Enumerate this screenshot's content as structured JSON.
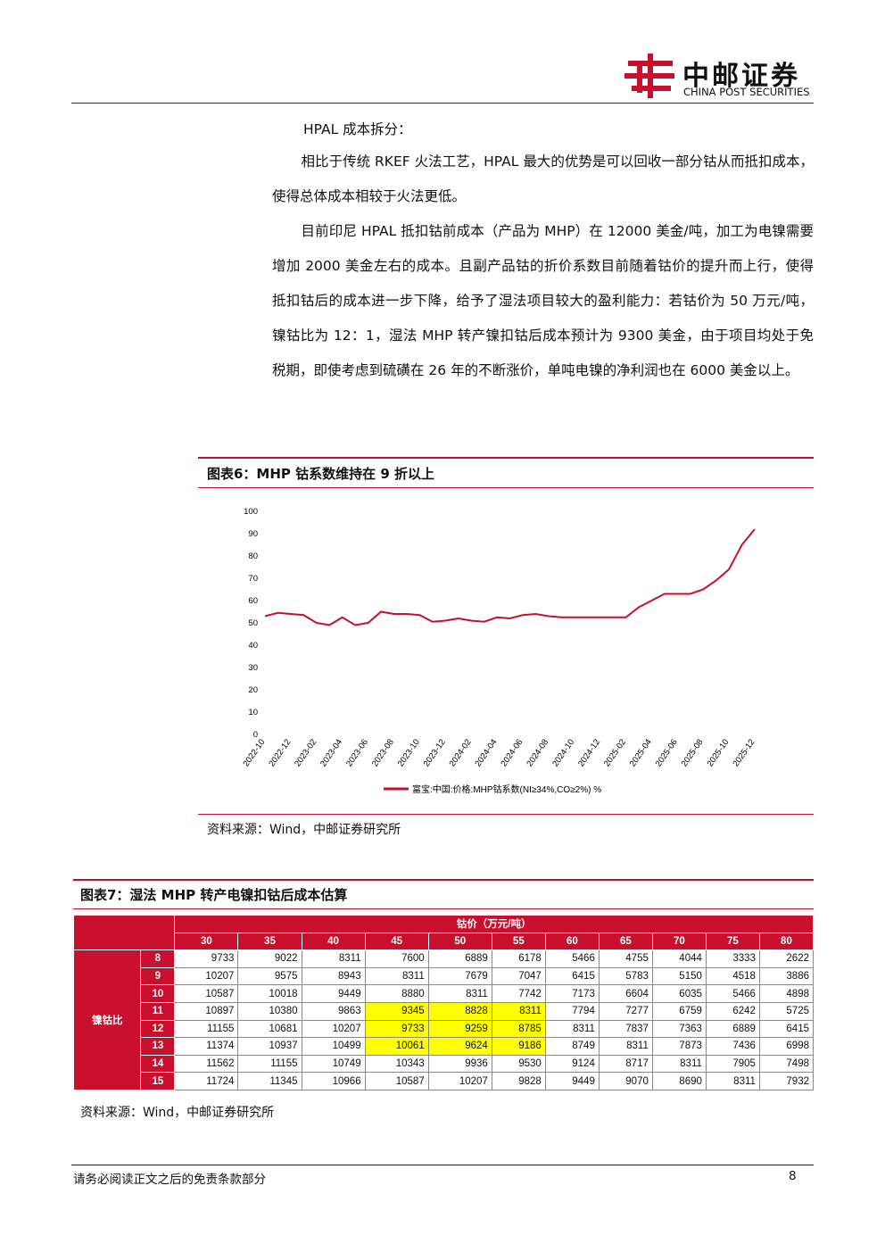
{
  "header": {
    "logo_cn": "中邮证券",
    "logo_en": "CHINA POST SECURITIES"
  },
  "body": {
    "heading": "HPAL 成本拆分：",
    "paragraphs": [
      "相比于传统 RKEF 火法工艺，HPAL 最大的优势是可以回收一部分钴从而抵扣成本，使得总体成本相较于火法更低。",
      "目前印尼 HPAL 抵扣钴前成本（产品为 MHP）在 12000 美金/吨，加工为电镍需要增加 2000 美金左右的成本。且副产品钴的折价系数目前随着钴价的提升而上行，使得抵扣钴后的成本进一步下降，给予了湿法项目较大的盈利能力：若钴价为 50 万元/吨，镍钴比为 12：1，湿法 MHP 转产镍扣钴后成本预计为 9300 美金，由于项目均处于免税期，即使考虑到硫磺在 26 年的不断涨价，单吨电镍的净利润也在 6000 美金以上。"
    ]
  },
  "figure6": {
    "title": "图表6：MHP 钴系数维持在 9 折以上",
    "source": "资料来源：Wind，中邮证券研究所"
  },
  "chart_data": {
    "type": "line",
    "x": [
      "2022-10",
      "2022-11",
      "2022-12",
      "2023-01",
      "2023-02",
      "2023-03",
      "2023-04",
      "2023-05",
      "2023-06",
      "2023-07",
      "2023-08",
      "2023-09",
      "2023-10",
      "2023-11",
      "2023-12",
      "2024-01",
      "2024-02",
      "2024-03",
      "2024-04",
      "2024-05",
      "2024-06",
      "2024-07",
      "2024-08",
      "2024-09",
      "2024-10",
      "2024-11",
      "2024-12",
      "2025-01",
      "2025-02",
      "2025-03",
      "2025-04",
      "2025-05",
      "2025-06",
      "2025-07",
      "2025-08",
      "2025-09",
      "2025-10",
      "2025-11",
      "2025-12"
    ],
    "xticks": [
      "2022-10",
      "2022-12",
      "2023-02",
      "2023-04",
      "2023-06",
      "2023-08",
      "2023-10",
      "2023-12",
      "2024-02",
      "2024-04",
      "2024-06",
      "2024-08",
      "2024-10",
      "2024-12",
      "2025-02",
      "2025-04",
      "2025-06",
      "2025-08",
      "2025-10",
      "2025-12"
    ],
    "series": [
      {
        "name": "富宝:中国:价格:MHP钴系数(NI≥34%,CO≥2%) %",
        "color": "#c8102e",
        "values": [
          53,
          54.5,
          54,
          53.5,
          50,
          49,
          52.5,
          49,
          50,
          55,
          54,
          54,
          53.5,
          50.5,
          51,
          52,
          51,
          50.5,
          52.5,
          52,
          53.5,
          54,
          53,
          52.5,
          52.5,
          52.5,
          52.5,
          52.5,
          52.5,
          57,
          60,
          63,
          63,
          63,
          65,
          69,
          74,
          85,
          92
        ]
      }
    ],
    "ylim": [
      0,
      100
    ],
    "yticks": [
      0,
      10,
      20,
      30,
      40,
      50,
      60,
      70,
      80,
      90,
      100
    ]
  },
  "figure7": {
    "title": "图表7：湿法 MHP 转产电镍扣钴后成本估算",
    "table": {
      "column_group": "钴价（万元/吨）",
      "row_group": "镍钴比",
      "columns": [
        30,
        35,
        40,
        45,
        50,
        55,
        60,
        65,
        70,
        75,
        80
      ],
      "rows": [
        {
          "label": 8,
          "values": [
            9733,
            9022,
            8311,
            7600,
            6889,
            6178,
            5466,
            4755,
            4044,
            3333,
            2622
          ]
        },
        {
          "label": 9,
          "values": [
            10207,
            9575,
            8943,
            8311,
            7679,
            7047,
            6415,
            5783,
            5150,
            4518,
            3886
          ]
        },
        {
          "label": 10,
          "values": [
            10587,
            10018,
            9449,
            8880,
            8311,
            7742,
            7173,
            6604,
            6035,
            5466,
            4898
          ]
        },
        {
          "label": 11,
          "values": [
            10897,
            10380,
            9863,
            9345,
            8828,
            8311,
            7794,
            7277,
            6759,
            6242,
            5725
          ]
        },
        {
          "label": 12,
          "values": [
            11155,
            10681,
            10207,
            9733,
            9259,
            8785,
            8311,
            7837,
            7363,
            6889,
            6415
          ]
        },
        {
          "label": 13,
          "values": [
            11374,
            10937,
            10499,
            10061,
            9624,
            9186,
            8749,
            8311,
            7873,
            7436,
            6998
          ]
        },
        {
          "label": 14,
          "values": [
            11562,
            11155,
            10749,
            10343,
            9936,
            9530,
            9124,
            8717,
            8311,
            7905,
            7498
          ]
        },
        {
          "label": 15,
          "values": [
            11724,
            11345,
            10966,
            10587,
            10207,
            9828,
            9449,
            9070,
            8690,
            8311,
            7932
          ]
        }
      ],
      "highlight": {
        "color": "#ffff00",
        "rows": [
          11,
          12,
          13
        ],
        "columns": [
          45,
          50,
          55
        ]
      }
    },
    "source": "资料来源：Wind，中邮证券研究所"
  },
  "footer": {
    "disclaimer": "请务必阅读正文之后的免责条款部分",
    "page": "8"
  }
}
